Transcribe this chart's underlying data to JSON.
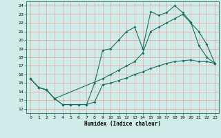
{
  "xlabel": "Humidex (Indice chaleur)",
  "bg_color": "#d0ece8",
  "line_color": "#1a6e5e",
  "grid_color": "#e8a0a0",
  "xlim": [
    -0.5,
    23.5
  ],
  "ylim": [
    11.5,
    24.5
  ],
  "yticks": [
    12,
    13,
    14,
    15,
    16,
    17,
    18,
    19,
    20,
    21,
    22,
    23,
    24
  ],
  "xticks": [
    0,
    1,
    2,
    3,
    4,
    5,
    6,
    7,
    8,
    9,
    10,
    11,
    12,
    13,
    14,
    15,
    16,
    17,
    18,
    19,
    20,
    21,
    22,
    23
  ],
  "line1_x": [
    0,
    1,
    2,
    3,
    4,
    5,
    6,
    7,
    8,
    9,
    10,
    11,
    12,
    13,
    14,
    15,
    16,
    17,
    18,
    19,
    20,
    21,
    22,
    23
  ],
  "line1_y": [
    15.5,
    14.5,
    14.2,
    13.2,
    12.5,
    12.5,
    12.5,
    12.5,
    12.8,
    14.8,
    15.0,
    15.3,
    15.6,
    16.0,
    16.3,
    16.7,
    17.0,
    17.3,
    17.5,
    17.6,
    17.7,
    17.5,
    17.5,
    17.3
  ],
  "line2_x": [
    0,
    1,
    2,
    3,
    9,
    10,
    11,
    12,
    13,
    14,
    15,
    16,
    17,
    18,
    19,
    20,
    21,
    22,
    23
  ],
  "line2_y": [
    15.5,
    14.5,
    14.2,
    13.2,
    15.5,
    16.0,
    16.5,
    17.0,
    17.5,
    18.5,
    21.0,
    21.5,
    22.0,
    22.5,
    23.0,
    22.0,
    21.0,
    19.5,
    17.3
  ],
  "line3_x": [
    0,
    1,
    2,
    3,
    4,
    5,
    6,
    7,
    8,
    9,
    10,
    11,
    12,
    13,
    14,
    15,
    16,
    17,
    18,
    19,
    20,
    21,
    22,
    23
  ],
  "line3_y": [
    15.5,
    14.5,
    14.2,
    13.2,
    12.5,
    12.5,
    12.5,
    12.5,
    15.0,
    18.8,
    19.0,
    20.0,
    21.0,
    21.5,
    19.0,
    23.3,
    22.9,
    23.2,
    24.0,
    23.2,
    22.1,
    19.4,
    18.0,
    17.3
  ]
}
